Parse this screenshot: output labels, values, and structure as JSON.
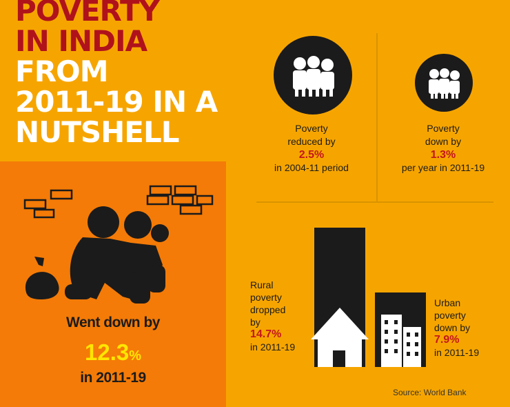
{
  "title": {
    "line1": "POVERTY",
    "line2": "IN INDIA",
    "line3": "FROM",
    "line4": "2011-19 IN A",
    "line5": "NUTSHELL"
  },
  "colors": {
    "background": "#F6A500",
    "panel": "#F47B07",
    "title_red": "#B0121B",
    "highlight_red": "#C4161C",
    "highlight_yellow": "#FFE600"
  },
  "main_stat": {
    "line1": "Went down by",
    "value": "12.3",
    "unit": "%",
    "line2": "in 2011-19"
  },
  "stats": [
    {
      "line1": "Poverty",
      "line2": "reduced by",
      "value": "2.5%",
      "line3": "in 2004-11 period",
      "icon": "family-icon"
    },
    {
      "line1": "Poverty",
      "line2": "down by",
      "value": "1.3%",
      "line3": "per year in 2011-19",
      "icon": "family-icon"
    }
  ],
  "rural": {
    "line1": "Rural",
    "line2": "poverty",
    "line3": "dropped",
    "line4": "by",
    "value": "14.7%",
    "line5": "in 2011-19",
    "icon": "hut-icon"
  },
  "urban": {
    "line1": "Urban",
    "line2": "poverty",
    "line3": "down by",
    "value": "7.9%",
    "line4": "in 2011-19",
    "icon": "buildings-icon"
  },
  "source": "Source: World Bank"
}
